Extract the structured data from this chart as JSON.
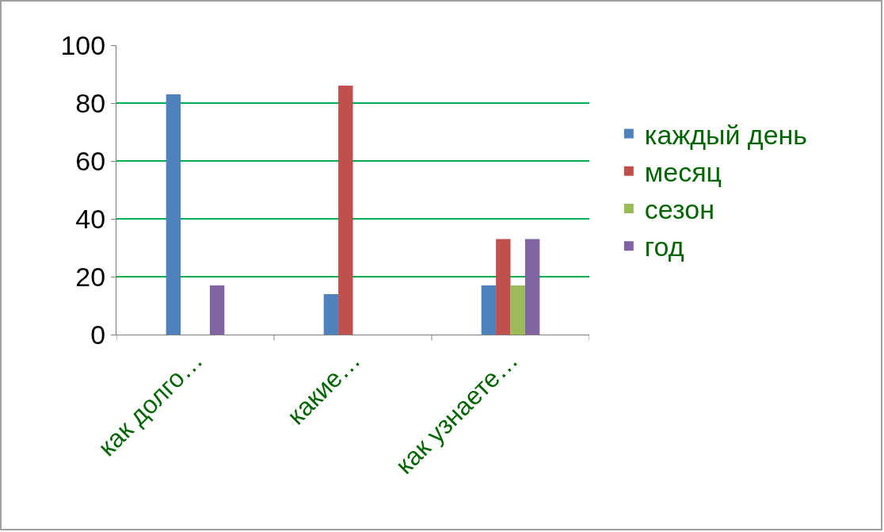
{
  "chart_data": {
    "type": "bar",
    "categories": [
      "как долго…",
      "какие…",
      "как узнаете…"
    ],
    "series": [
      {
        "name": "каждый день",
        "color": "#4f81bd",
        "values": [
          83,
          14,
          17
        ]
      },
      {
        "name": "месяц",
        "color": "#c0504d",
        "values": [
          null,
          86,
          33
        ]
      },
      {
        "name": "сезон",
        "color": "#9bbb59",
        "values": [
          null,
          null,
          17
        ]
      },
      {
        "name": "год",
        "color": "#8064a2",
        "values": [
          17,
          null,
          33
        ]
      }
    ],
    "ylim": [
      0,
      100
    ],
    "yticks": [
      0,
      20,
      40,
      60,
      80,
      100
    ],
    "grid": "y",
    "legend": "right"
  }
}
